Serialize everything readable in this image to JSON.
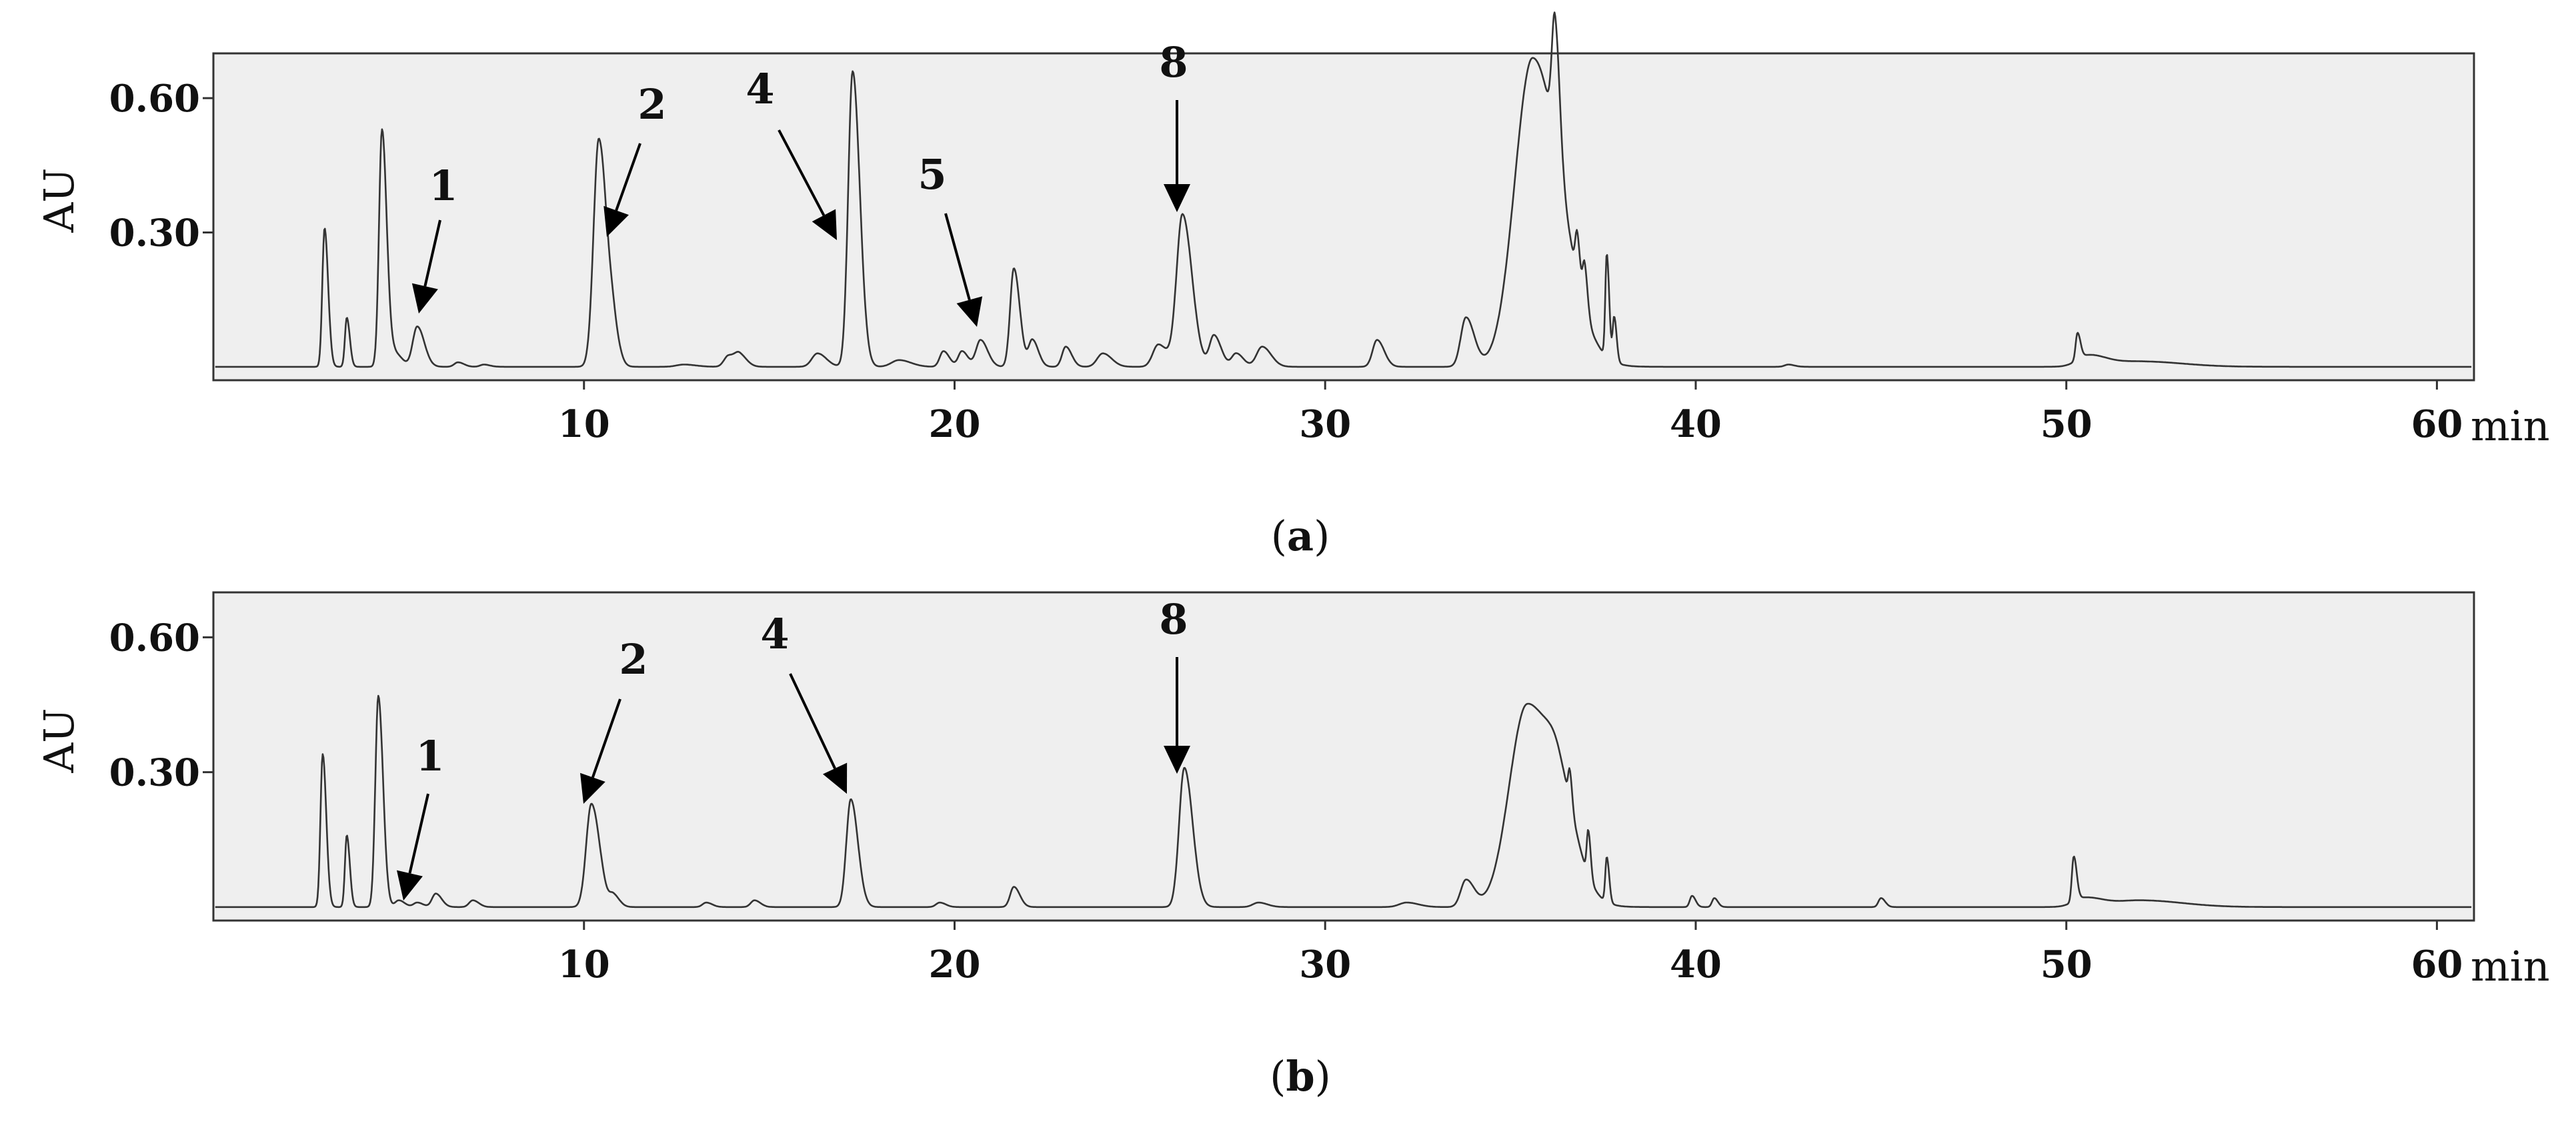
{
  "chart_data": [
    {
      "type": "line",
      "panel_label": "a",
      "ylabel": "AU",
      "x_unit": "min",
      "xlim": [
        0,
        61
      ],
      "ylim": [
        -0.03,
        0.7
      ],
      "x_ticks": [
        10,
        20,
        30,
        40,
        50,
        60
      ],
      "x_tick_labels": [
        "10",
        "20",
        "30",
        "40",
        "50",
        "60"
      ],
      "y_ticks": [
        0.3,
        0.6
      ],
      "y_tick_labels": [
        "0.30",
        "0.60"
      ],
      "grid": false,
      "background_color": "#efefef",
      "line_color": "#333333",
      "baseline": 0.0,
      "peaks": [
        {
          "x": 3.0,
          "y": 0.31,
          "w": 0.06
        },
        {
          "x": 3.6,
          "y": 0.11,
          "w": 0.05
        },
        {
          "x": 4.55,
          "y": 0.53,
          "w": 0.08
        },
        {
          "x": 4.9,
          "y": 0.03,
          "w": 0.12
        },
        {
          "x": 5.5,
          "y": 0.09,
          "w": 0.12
        },
        {
          "x": 6.6,
          "y": 0.01,
          "w": 0.1
        },
        {
          "x": 7.3,
          "y": 0.005,
          "w": 0.1
        },
        {
          "x": 10.4,
          "y": 0.51,
          "w": 0.14
        },
        {
          "x": 10.8,
          "y": 0.05,
          "w": 0.1
        },
        {
          "x": 12.7,
          "y": 0.005,
          "w": 0.2
        },
        {
          "x": 13.9,
          "y": 0.025,
          "w": 0.12
        },
        {
          "x": 14.2,
          "y": 0.025,
          "w": 0.12
        },
        {
          "x": 16.3,
          "y": 0.03,
          "w": 0.15
        },
        {
          "x": 17.25,
          "y": 0.66,
          "w": 0.12
        },
        {
          "x": 18.5,
          "y": 0.015,
          "w": 0.2
        },
        {
          "x": 19.7,
          "y": 0.035,
          "w": 0.1
        },
        {
          "x": 20.2,
          "y": 0.035,
          "w": 0.1
        },
        {
          "x": 20.7,
          "y": 0.06,
          "w": 0.12
        },
        {
          "x": 21.6,
          "y": 0.22,
          "w": 0.1
        },
        {
          "x": 22.1,
          "y": 0.06,
          "w": 0.1
        },
        {
          "x": 23.0,
          "y": 0.045,
          "w": 0.1
        },
        {
          "x": 24.0,
          "y": 0.03,
          "w": 0.15
        },
        {
          "x": 25.5,
          "y": 0.05,
          "w": 0.15
        },
        {
          "x": 26.15,
          "y": 0.34,
          "w": 0.16
        },
        {
          "x": 27.0,
          "y": 0.07,
          "w": 0.12
        },
        {
          "x": 27.6,
          "y": 0.03,
          "w": 0.12
        },
        {
          "x": 28.3,
          "y": 0.045,
          "w": 0.15
        },
        {
          "x": 31.4,
          "y": 0.06,
          "w": 0.12
        },
        {
          "x": 33.8,
          "y": 0.11,
          "w": 0.14
        },
        {
          "x": 35.6,
          "y": 0.69,
          "w": 0.48
        },
        {
          "x": 36.2,
          "y": 0.28,
          "w": 0.08
        },
        {
          "x": 36.8,
          "y": 0.1,
          "w": 0.05
        },
        {
          "x": 37.0,
          "y": 0.1,
          "w": 0.05
        },
        {
          "x": 37.6,
          "y": 0.23,
          "w": 0.04
        },
        {
          "x": 37.8,
          "y": 0.1,
          "w": 0.04
        },
        {
          "x": 42.5,
          "y": 0.005,
          "w": 0.1
        },
        {
          "x": 50.3,
          "y": 0.06,
          "w": 0.05
        },
        {
          "x": 50.6,
          "y": 0.025,
          "w": 0.3
        },
        {
          "x": 52.0,
          "y": 0.012,
          "w": 0.7
        }
      ],
      "annotations": [
        {
          "label": "1",
          "peak_x": 5.5
        },
        {
          "label": "2",
          "peak_x": 10.4
        },
        {
          "label": "4",
          "peak_x": 17.25
        },
        {
          "label": "5",
          "peak_x": 20.7
        },
        {
          "label": "8",
          "peak_x": 26.15
        }
      ]
    },
    {
      "type": "line",
      "panel_label": "b",
      "ylabel": "AU",
      "x_unit": "min",
      "xlim": [
        0,
        61
      ],
      "ylim": [
        -0.03,
        0.7
      ],
      "x_ticks": [
        10,
        20,
        30,
        40,
        50,
        60
      ],
      "x_tick_labels": [
        "10",
        "20",
        "30",
        "40",
        "50",
        "60"
      ],
      "y_ticks": [
        0.3,
        0.6
      ],
      "y_tick_labels": [
        "0.30",
        "0.60"
      ],
      "grid": false,
      "background_color": "#efefef",
      "line_color": "#333333",
      "baseline": 0.0,
      "peaks": [
        {
          "x": 2.95,
          "y": 0.34,
          "w": 0.06
        },
        {
          "x": 3.6,
          "y": 0.16,
          "w": 0.05
        },
        {
          "x": 4.45,
          "y": 0.47,
          "w": 0.08
        },
        {
          "x": 5.0,
          "y": 0.015,
          "w": 0.1
        },
        {
          "x": 5.5,
          "y": 0.01,
          "w": 0.1
        },
        {
          "x": 6.0,
          "y": 0.03,
          "w": 0.1
        },
        {
          "x": 7.0,
          "y": 0.015,
          "w": 0.1
        },
        {
          "x": 10.2,
          "y": 0.23,
          "w": 0.14
        },
        {
          "x": 10.8,
          "y": 0.025,
          "w": 0.1
        },
        {
          "x": 13.3,
          "y": 0.01,
          "w": 0.1
        },
        {
          "x": 14.6,
          "y": 0.015,
          "w": 0.1
        },
        {
          "x": 17.2,
          "y": 0.24,
          "w": 0.12
        },
        {
          "x": 19.6,
          "y": 0.01,
          "w": 0.1
        },
        {
          "x": 21.6,
          "y": 0.045,
          "w": 0.1
        },
        {
          "x": 26.2,
          "y": 0.31,
          "w": 0.14
        },
        {
          "x": 28.2,
          "y": 0.01,
          "w": 0.15
        },
        {
          "x": 32.2,
          "y": 0.01,
          "w": 0.2
        },
        {
          "x": 33.8,
          "y": 0.06,
          "w": 0.14
        },
        {
          "x": 35.45,
          "y": 0.45,
          "w": 0.48
        },
        {
          "x": 36.3,
          "y": 0.11,
          "w": 0.3
        },
        {
          "x": 36.6,
          "y": 0.07,
          "w": 0.04
        },
        {
          "x": 37.1,
          "y": 0.1,
          "w": 0.04
        },
        {
          "x": 37.6,
          "y": 0.1,
          "w": 0.04
        },
        {
          "x": 39.9,
          "y": 0.025,
          "w": 0.06
        },
        {
          "x": 40.5,
          "y": 0.02,
          "w": 0.06
        },
        {
          "x": 45.0,
          "y": 0.02,
          "w": 0.07
        },
        {
          "x": 50.2,
          "y": 0.1,
          "w": 0.05
        },
        {
          "x": 50.5,
          "y": 0.02,
          "w": 0.3
        },
        {
          "x": 52.0,
          "y": 0.015,
          "w": 0.7
        }
      ],
      "annotations": [
        {
          "label": "1",
          "peak_x": 5.0
        },
        {
          "label": "2",
          "peak_x": 10.2
        },
        {
          "label": "4",
          "peak_x": 17.2
        },
        {
          "label": "8",
          "peak_x": 26.2
        }
      ]
    }
  ]
}
